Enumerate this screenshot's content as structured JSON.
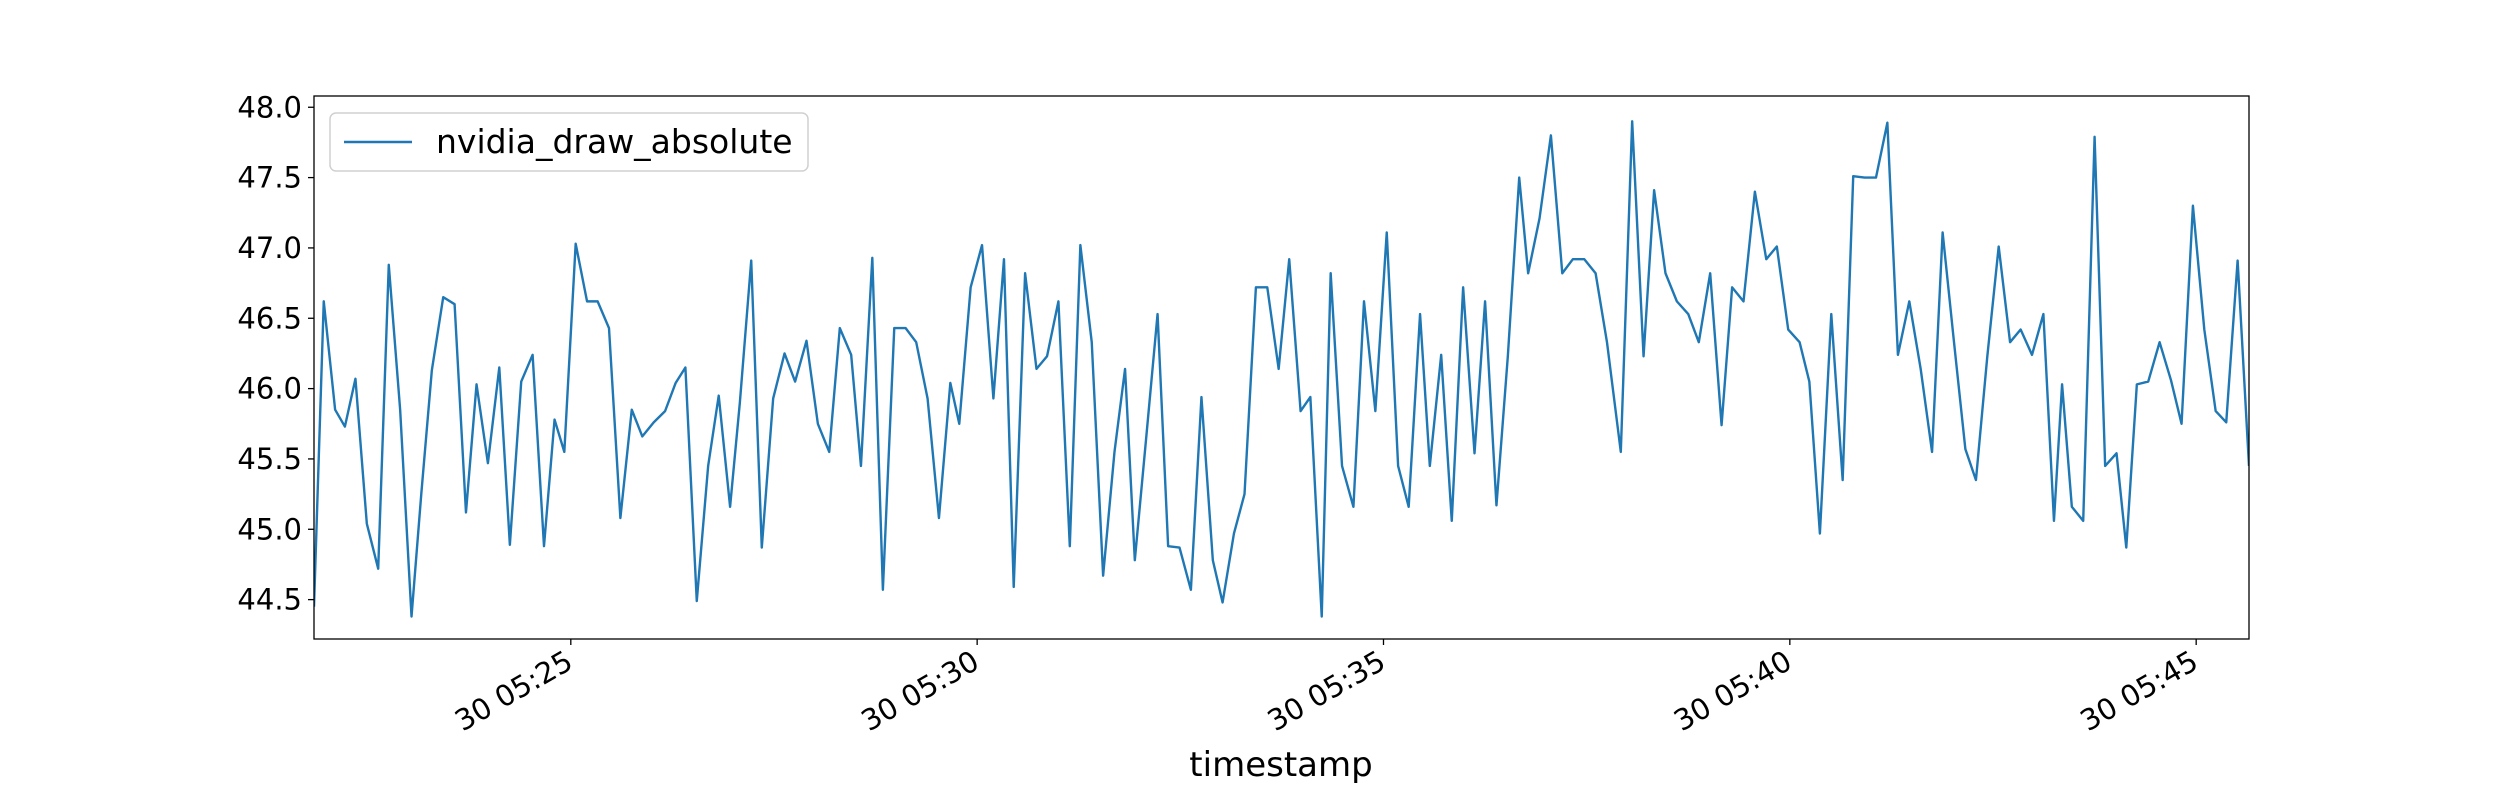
{
  "chart_data": {
    "type": "line",
    "x_label": "timestamp",
    "x": [
      21.84,
      21.96,
      22.1,
      22.22,
      22.35,
      22.49,
      22.63,
      22.76,
      22.9,
      23.04,
      23.16,
      23.29,
      23.43,
      23.57,
      23.71,
      23.84,
      23.98,
      24.12,
      24.25,
      24.39,
      24.53,
      24.67,
      24.8,
      24.92,
      25.06,
      25.2,
      25.33,
      25.47,
      25.61,
      25.75,
      25.88,
      26.02,
      26.16,
      26.29,
      26.41,
      26.55,
      26.69,
      26.82,
      26.96,
      27.08,
      27.22,
      27.35,
      27.49,
      27.63,
      27.76,
      27.9,
      28.04,
      28.18,
      28.31,
      28.45,
      28.57,
      28.71,
      28.84,
      28.98,
      29.12,
      29.25,
      29.39,
      29.53,
      29.67,
      29.78,
      29.92,
      30.06,
      30.2,
      30.33,
      30.45,
      30.59,
      30.73,
      30.86,
      31.0,
      31.14,
      31.27,
      31.41,
      31.55,
      31.69,
      31.82,
      31.94,
      32.08,
      32.22,
      32.35,
      32.49,
      32.63,
      32.76,
      32.9,
      33.02,
      33.16,
      33.29,
      33.43,
      33.57,
      33.71,
      33.84,
      33.98,
      34.1,
      34.24,
      34.35,
      34.49,
      34.63,
      34.76,
      34.9,
      35.04,
      35.18,
      35.31,
      35.45,
      35.57,
      35.71,
      35.84,
      35.98,
      36.12,
      36.25,
      36.39,
      36.53,
      36.67,
      36.78,
      36.92,
      37.06,
      37.2,
      37.33,
      37.47,
      37.61,
      37.75,
      37.92,
      38.06,
      38.2,
      38.33,
      38.47,
      38.61,
      38.75,
      38.88,
      39.02,
      39.16,
      39.29,
      39.43,
      39.57,
      39.71,
      39.84,
      39.98,
      40.12,
      40.24,
      40.37,
      40.51,
      40.65,
      40.78,
      40.92,
      41.06,
      41.2,
      41.33,
      41.47,
      41.61,
      41.75,
      41.88,
      42.02,
      42.16,
      42.29,
      42.43,
      42.57,
      42.71,
      42.84,
      42.98,
      43.12,
      43.25,
      43.35,
      43.47,
      43.61,
      43.75,
      43.88,
      44.02,
      44.14,
      44.27,
      44.41,
      44.55,
      44.69,
      44.82,
      44.96,
      45.1,
      45.24,
      45.37,
      45.51,
      45.65
    ],
    "series": [
      {
        "name": "nvidia_draw_absolute",
        "color": "#1f77b4",
        "values": [
          44.45,
          46.62,
          45.85,
          45.73,
          46.07,
          45.04,
          44.72,
          46.88,
          45.85,
          44.38,
          45.25,
          46.13,
          46.65,
          46.6,
          45.12,
          46.03,
          45.47,
          46.15,
          44.89,
          46.05,
          46.24,
          44.88,
          45.78,
          45.55,
          47.03,
          46.62,
          46.62,
          46.43,
          45.08,
          45.85,
          45.66,
          45.76,
          45.84,
          46.04,
          46.15,
          44.49,
          45.45,
          45.95,
          45.16,
          45.9,
          46.91,
          44.87,
          45.93,
          46.25,
          46.05,
          46.34,
          45.75,
          45.55,
          46.43,
          46.24,
          45.45,
          46.93,
          44.57,
          46.43,
          46.43,
          46.33,
          45.93,
          45.08,
          46.04,
          45.75,
          46.72,
          47.02,
          45.93,
          46.92,
          44.59,
          46.82,
          46.14,
          46.23,
          46.62,
          44.88,
          47.02,
          46.33,
          44.67,
          45.55,
          46.14,
          44.78,
          45.65,
          46.53,
          44.88,
          44.87,
          44.57,
          45.94,
          44.78,
          44.48,
          44.97,
          45.25,
          46.72,
          46.72,
          46.14,
          46.92,
          45.84,
          45.94,
          44.38,
          46.82,
          45.45,
          45.16,
          46.62,
          45.84,
          47.11,
          45.45,
          45.16,
          46.53,
          45.45,
          46.24,
          45.06,
          46.72,
          45.54,
          46.62,
          45.17,
          46.23,
          47.5,
          46.82,
          47.21,
          47.8,
          46.82,
          46.92,
          46.92,
          46.82,
          46.33,
          45.55,
          47.9,
          46.23,
          47.41,
          46.82,
          46.62,
          46.53,
          46.33,
          46.82,
          45.74,
          46.72,
          46.62,
          47.4,
          46.92,
          47.01,
          46.42,
          46.33,
          46.05,
          44.97,
          46.53,
          45.35,
          47.51,
          47.5,
          47.5,
          47.89,
          46.24,
          46.62,
          46.14,
          45.55,
          47.11,
          46.33,
          45.57,
          45.35,
          46.23,
          47.01,
          46.33,
          46.42,
          46.24,
          46.53,
          45.06,
          46.03,
          45.16,
          45.06,
          47.79,
          45.45,
          45.54,
          44.87,
          46.03,
          46.05,
          46.33,
          46.06,
          45.75,
          47.3,
          46.42,
          45.84,
          45.76,
          46.91,
          45.45
        ]
      }
    ],
    "xlim": [
      21.84,
      45.65
    ],
    "xticks": [
      {
        "value": 25,
        "label": "30 05:25"
      },
      {
        "value": 30,
        "label": "30 05:30"
      },
      {
        "value": 35,
        "label": "30 05:35"
      },
      {
        "value": 40,
        "label": "30 05:40"
      },
      {
        "value": 45,
        "label": "30 05:45"
      }
    ],
    "ylim": [
      44.22,
      48.08
    ],
    "yticks": [
      44.5,
      {
        "value": 45,
        "label": "45.0"
      },
      45.5,
      {
        "value": 46,
        "label": "46.0"
      },
      46.5,
      {
        "value": 47,
        "label": "47.0"
      },
      47.5,
      {
        "value": 48,
        "label": "48.0"
      }
    ],
    "legend": "upper left",
    "grid": false
  }
}
